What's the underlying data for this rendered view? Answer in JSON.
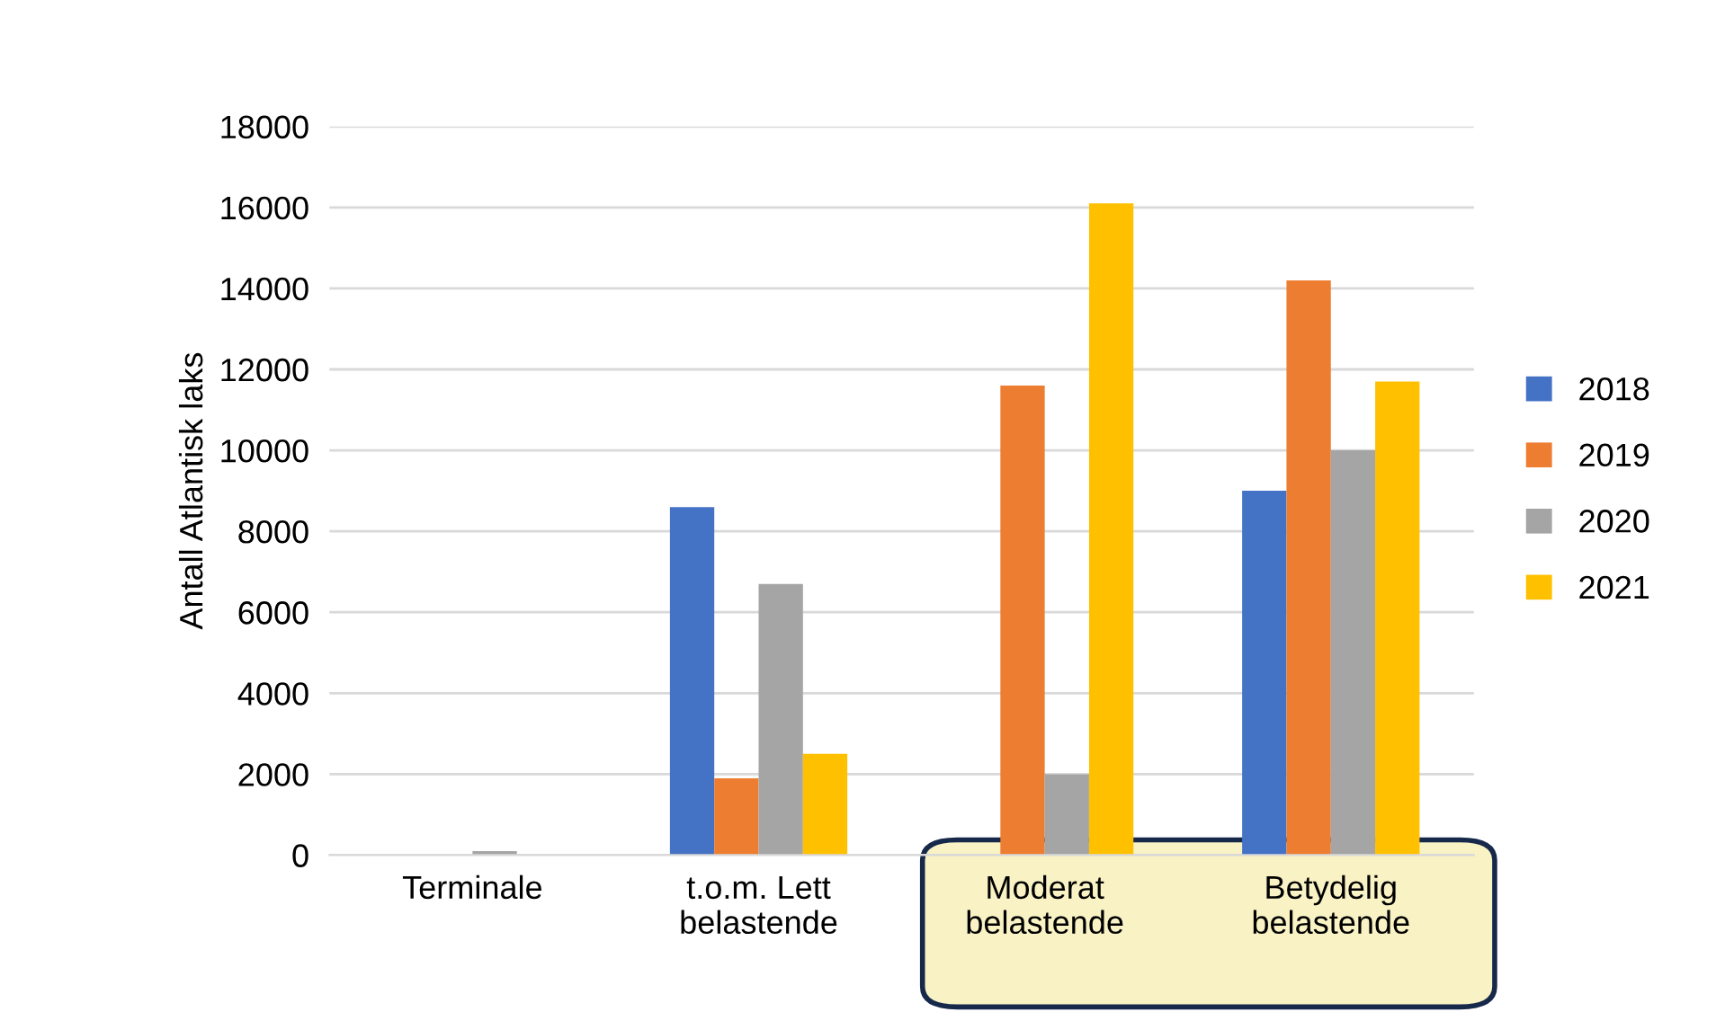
{
  "chart_data": {
    "type": "bar",
    "ylabel": "Antall Atlantisk laks",
    "categories": [
      "Terminale",
      "t.o.m. Lett\nbelastende",
      "Moderat\nbelastende",
      "Betydelig\nbelastende"
    ],
    "series": [
      {
        "name": "2018",
        "color": "#4472c4",
        "values": [
          0,
          8600,
          0,
          9000
        ]
      },
      {
        "name": "2019",
        "color": "#ed7d31",
        "values": [
          0,
          1900,
          11600,
          14200
        ]
      },
      {
        "name": "2020",
        "color": "#a5a5a5",
        "values": [
          100,
          6700,
          2000,
          10000
        ]
      },
      {
        "name": "2021",
        "color": "#ffc000",
        "values": [
          0,
          2500,
          16100,
          11700
        ]
      }
    ],
    "ylim": [
      0,
      18000
    ],
    "yticks": [
      0,
      2000,
      4000,
      6000,
      8000,
      10000,
      12000,
      14000,
      16000,
      18000
    ],
    "grid": "y",
    "legend": "right"
  }
}
